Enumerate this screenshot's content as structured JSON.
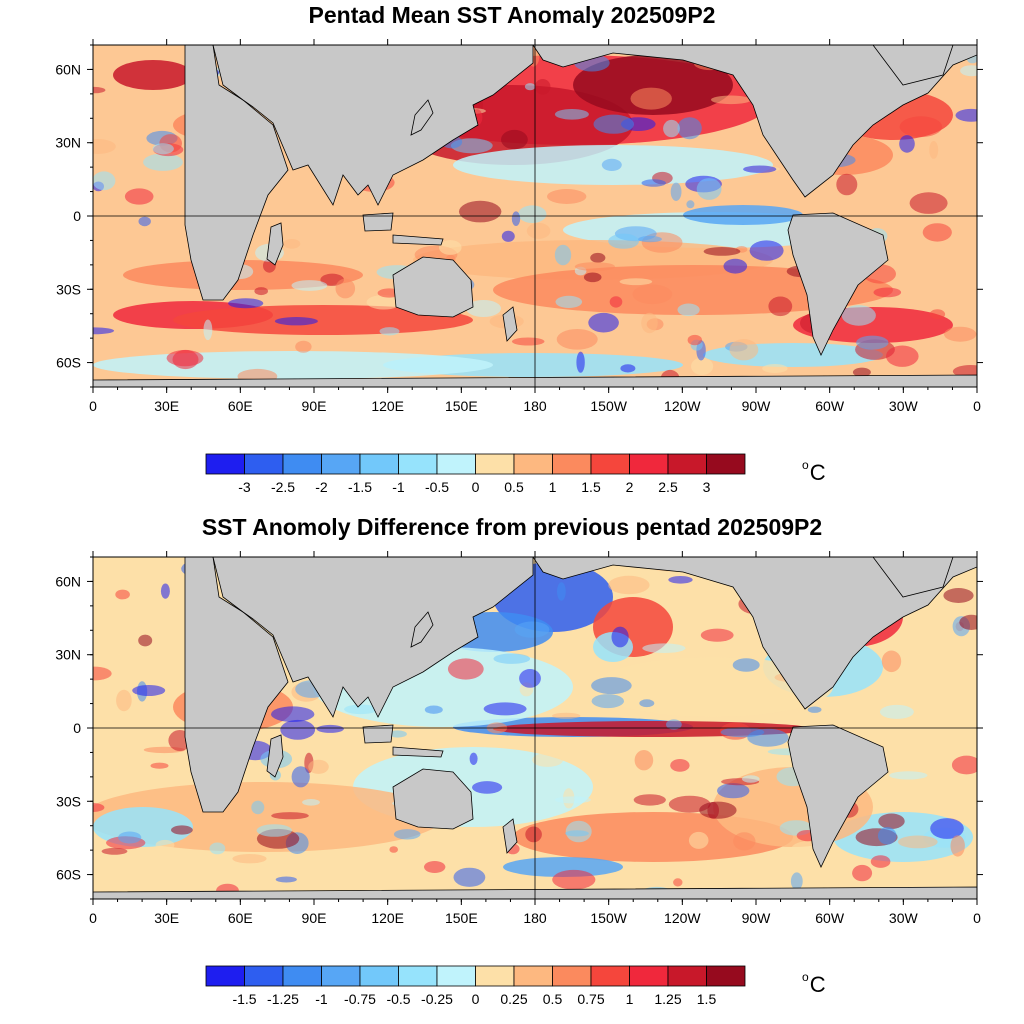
{
  "panels": [
    {
      "title": "Pentad Mean SST Anomaly 202509P2",
      "lat_labels": [
        "60N",
        "30N",
        "0",
        "30S",
        "60S"
      ],
      "lon_labels": [
        "0",
        "30E",
        "60E",
        "90E",
        "120E",
        "150E",
        "180",
        "150W",
        "120W",
        "90W",
        "60W",
        "30W",
        "0"
      ],
      "colorbar": {
        "labels": [
          "-3",
          "-2.5",
          "-2",
          "-1.5",
          "-1",
          "-0.5",
          "0",
          "0.5",
          "1",
          "1.5",
          "2",
          "2.5",
          "3"
        ],
        "colors": [
          "#1e1ef0",
          "#2e5ef0",
          "#3f8cf2",
          "#57a6f5",
          "#72c8fa",
          "#96e3fc",
          "#c0f3fc",
          "#fde0a8",
          "#fdb880",
          "#fb8a5e",
          "#f5463c",
          "#f0283c",
          "#c8182a",
          "#960a1e"
        ],
        "unit": "C"
      }
    },
    {
      "title": "SST Anomoly Difference from previous pentad 202509P2",
      "lat_labels": [
        "60N",
        "30N",
        "0",
        "30S",
        "60S"
      ],
      "lon_labels": [
        "0",
        "30E",
        "60E",
        "90E",
        "120E",
        "150E",
        "180",
        "150W",
        "120W",
        "90W",
        "60W",
        "30W",
        "0"
      ],
      "colorbar": {
        "labels": [
          "-1.5",
          "-1.25",
          "-1",
          "-0.75",
          "-0.5",
          "-0.25",
          "0",
          "0.25",
          "0.5",
          "0.75",
          "1",
          "1.25",
          "1.5"
        ],
        "colors": [
          "#1e1ef0",
          "#2e5ef0",
          "#3f8cf2",
          "#57a6f5",
          "#72c8fa",
          "#96e3fc",
          "#c0f3fc",
          "#fde0a8",
          "#fdb880",
          "#fb8a5e",
          "#f5463c",
          "#f0283c",
          "#c8182a",
          "#960a1e"
        ],
        "unit": "C"
      }
    }
  ]
}
